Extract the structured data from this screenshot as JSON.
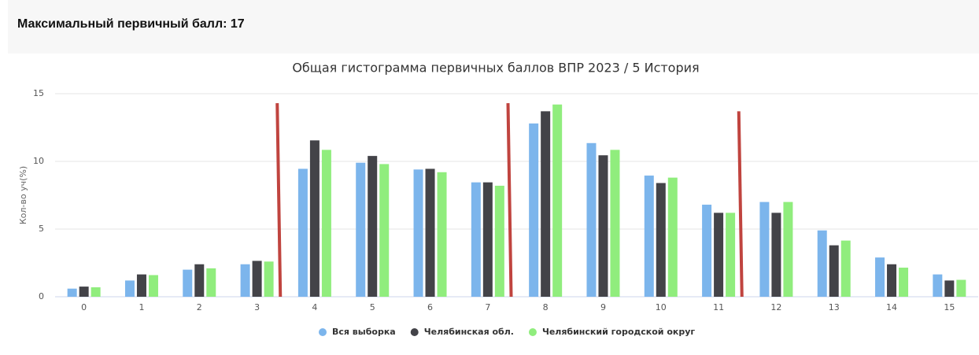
{
  "header": "Максимальный первичный балл: 17",
  "chart_data": {
    "type": "bar",
    "title": "Общая гистограмма первичных баллов ВПР 2023 / 5 История",
    "ylabel": "Кол-во уч(%)",
    "categories": [
      "0",
      "1",
      "2",
      "3",
      "4",
      "5",
      "6",
      "7",
      "8",
      "9",
      "10",
      "11",
      "12",
      "13",
      "14",
      "15"
    ],
    "series": [
      {
        "name": "Вся выборка",
        "color": "#7cb5ec",
        "values": [
          0.6,
          1.2,
          2.0,
          2.4,
          9.45,
          9.9,
          9.4,
          8.45,
          12.8,
          11.35,
          8.95,
          6.8,
          7.0,
          4.9,
          2.9,
          1.65
        ]
      },
      {
        "name": "Челябинская обл.",
        "color": "#434348",
        "values": [
          0.75,
          1.65,
          2.4,
          2.65,
          11.55,
          10.4,
          9.45,
          8.45,
          13.7,
          10.45,
          8.4,
          6.2,
          6.2,
          3.8,
          2.4,
          1.2
        ]
      },
      {
        "name": "Челябинский городской округ",
        "color": "#90ed7d",
        "values": [
          0.7,
          1.6,
          2.1,
          2.6,
          10.85,
          9.8,
          9.2,
          8.2,
          14.2,
          10.85,
          8.8,
          6.2,
          7.0,
          4.15,
          2.15,
          1.25
        ]
      }
    ],
    "threshold_lines": {
      "color": "#c0443f",
      "positions": [
        3.5,
        7.5,
        11.5
      ],
      "heights": [
        14.3,
        14.3,
        13.7
      ]
    },
    "ylim": [
      0,
      15
    ],
    "yticks": [
      0,
      5,
      10,
      15
    ],
    "grid": true
  }
}
